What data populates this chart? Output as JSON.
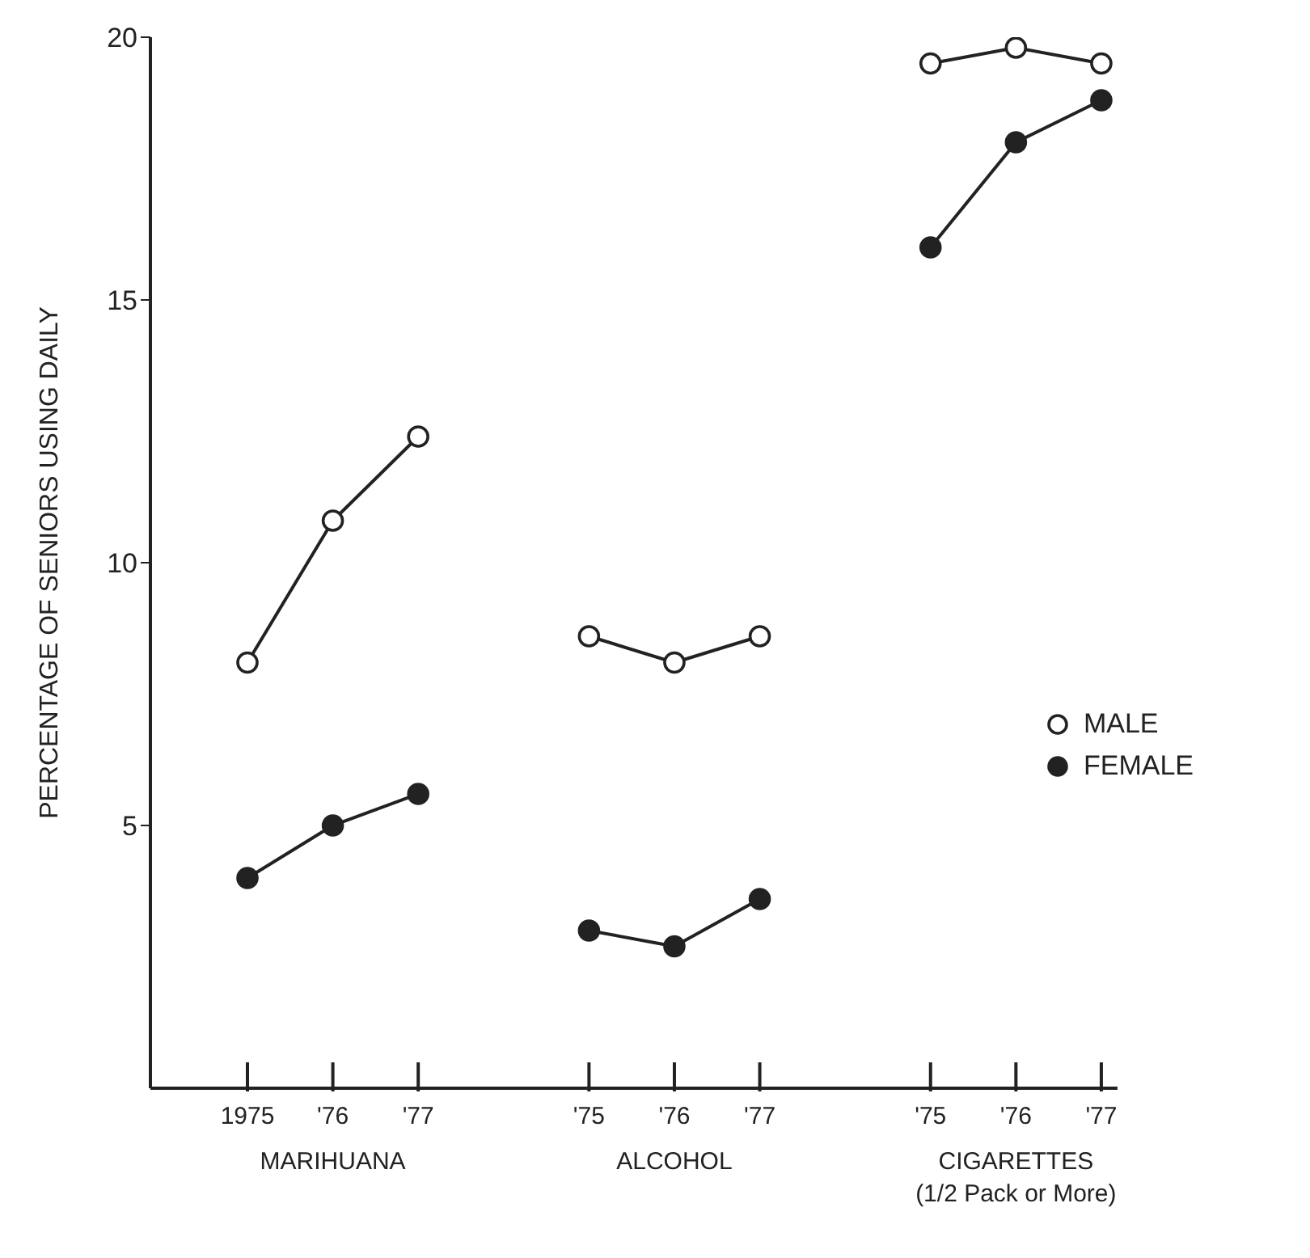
{
  "chart_data": {
    "type": "line",
    "ylabel": "PERCENTAGE OF SENIORS USING DAILY",
    "categories": [
      "1975",
      "'76",
      "'77",
      null,
      "'75",
      "'76",
      "'77",
      null,
      "'75",
      "'76",
      "'77"
    ],
    "series": [
      {
        "name": "MALE",
        "color": "#222222",
        "values": [
          8.1,
          10.8,
          12.4,
          null,
          8.6,
          8.1,
          8.6,
          null,
          19.5,
          19.8,
          19.5
        ]
      },
      {
        "name": "FEMALE",
        "color": "#222222",
        "values": [
          4.0,
          5.0,
          5.6,
          null,
          3.0,
          2.7,
          3.6,
          null,
          16.0,
          18.0,
          18.8
        ]
      }
    ],
    "ylim": [
      0,
      20
    ],
    "yticks": [
      5,
      10,
      15,
      20
    ],
    "grid": false,
    "legend": "right",
    "marker": "circle",
    "line_style": "solid",
    "annotations": [
      "MARIHUANA",
      "ALCOHOL",
      "CIGARETTES\n(1/2 Pack or More)"
    ]
  }
}
